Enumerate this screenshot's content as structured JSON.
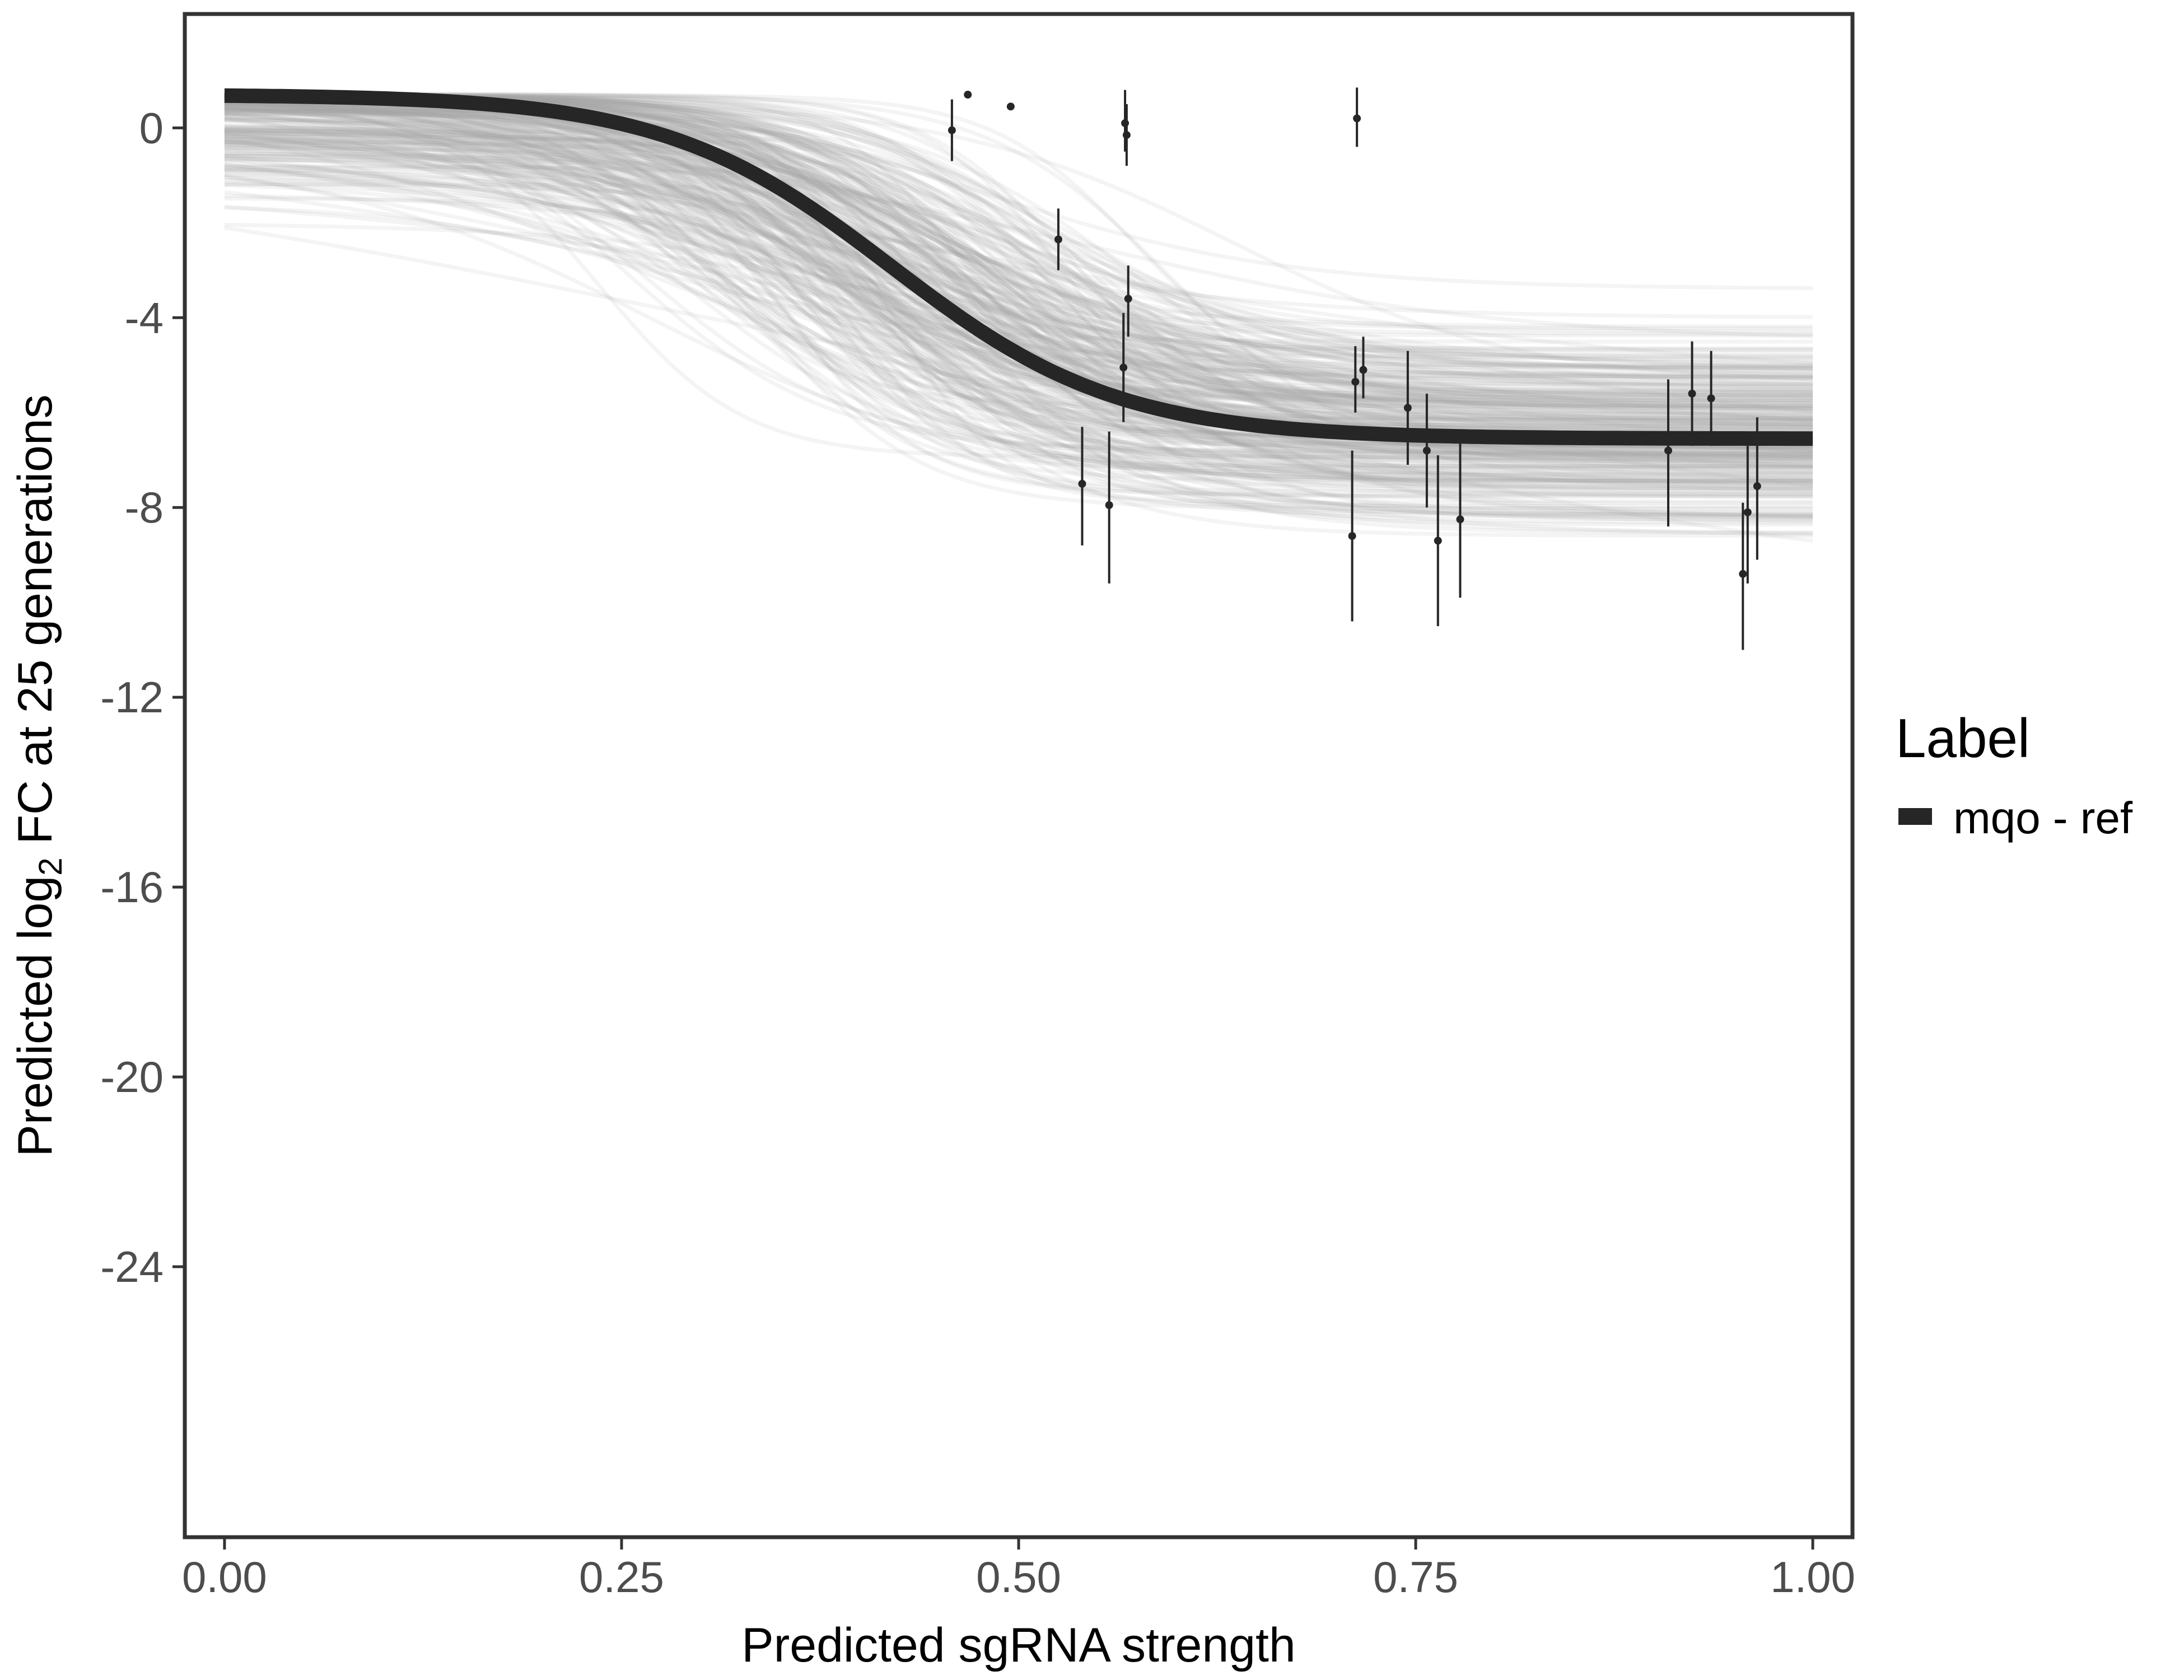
{
  "chart_data": {
    "type": "line",
    "xlabel": "Predicted sgRNA strength",
    "ylabel": {
      "prefix": "Predicted  log",
      "subscript": "2",
      "suffix": " FC at 25 generations"
    },
    "xlim": [
      -0.025,
      1.025
    ],
    "ylim": [
      -29.7,
      2.4
    ],
    "x_ticks": [
      0.0,
      0.25,
      0.5,
      0.75,
      1.0
    ],
    "x_tick_labels": [
      "0.00",
      "0.25",
      "0.50",
      "0.75",
      "1.00"
    ],
    "y_ticks": [
      0,
      -4,
      -8,
      -12,
      -16,
      -20,
      -24
    ],
    "y_tick_labels": [
      "0",
      "-4",
      "-8",
      "-12",
      "-16",
      "-20",
      "-24"
    ],
    "grid": false,
    "legend": {
      "title": "Label",
      "position": "right",
      "entries": [
        {
          "label": "mqo - ref",
          "color": "#262626"
        }
      ]
    },
    "fit_curve": {
      "name": "mqo - ref",
      "model": "logistic",
      "upper": 0.7,
      "lower": -6.55,
      "midpoint": 0.42,
      "slope": 14,
      "color": "#262626"
    },
    "posterior_draws": {
      "count": 300,
      "color": "#a6a6a6",
      "description_units": "logistic draws around fit"
    },
    "points": [
      {
        "x": 0.458,
        "y": -0.05,
        "lo": -0.7,
        "hi": 0.6
      },
      {
        "x": 0.468,
        "y": 0.7,
        "lo": 0.7,
        "hi": 0.7
      },
      {
        "x": 0.495,
        "y": 0.45,
        "lo": 0.45,
        "hi": 0.45
      },
      {
        "x": 0.525,
        "y": -2.35,
        "lo": -3.0,
        "hi": -1.7
      },
      {
        "x": 0.54,
        "y": -7.5,
        "lo": -8.8,
        "hi": -6.3
      },
      {
        "x": 0.557,
        "y": -7.95,
        "lo": -9.6,
        "hi": -6.4
      },
      {
        "x": 0.566,
        "y": -5.05,
        "lo": -6.2,
        "hi": -3.9
      },
      {
        "x": 0.567,
        "y": 0.1,
        "lo": -0.5,
        "hi": 0.8
      },
      {
        "x": 0.568,
        "y": -0.15,
        "lo": -0.8,
        "hi": 0.5
      },
      {
        "x": 0.569,
        "y": -3.6,
        "lo": -4.4,
        "hi": -2.9
      },
      {
        "x": 0.71,
        "y": -8.6,
        "lo": -10.4,
        "hi": -6.8
      },
      {
        "x": 0.712,
        "y": -5.35,
        "lo": -6.0,
        "hi": -4.6
      },
      {
        "x": 0.713,
        "y": 0.2,
        "lo": -0.4,
        "hi": 0.85
      },
      {
        "x": 0.717,
        "y": -5.1,
        "lo": -5.7,
        "hi": -4.4
      },
      {
        "x": 0.745,
        "y": -5.9,
        "lo": -7.1,
        "hi": -4.7
      },
      {
        "x": 0.757,
        "y": -6.8,
        "lo": -8.0,
        "hi": -5.6
      },
      {
        "x": 0.764,
        "y": -8.7,
        "lo": -10.5,
        "hi": -6.9
      },
      {
        "x": 0.778,
        "y": -8.25,
        "lo": -9.9,
        "hi": -6.6
      },
      {
        "x": 0.909,
        "y": -6.8,
        "lo": -8.4,
        "hi": -5.3
      },
      {
        "x": 0.924,
        "y": -5.6,
        "lo": -6.7,
        "hi": -4.5
      },
      {
        "x": 0.936,
        "y": -5.7,
        "lo": -6.7,
        "hi": -4.7
      },
      {
        "x": 0.956,
        "y": -9.4,
        "lo": -11.0,
        "hi": -7.9
      },
      {
        "x": 0.959,
        "y": -8.1,
        "lo": -9.6,
        "hi": -6.7
      },
      {
        "x": 0.965,
        "y": -7.55,
        "lo": -9.1,
        "hi": -6.1
      }
    ]
  }
}
